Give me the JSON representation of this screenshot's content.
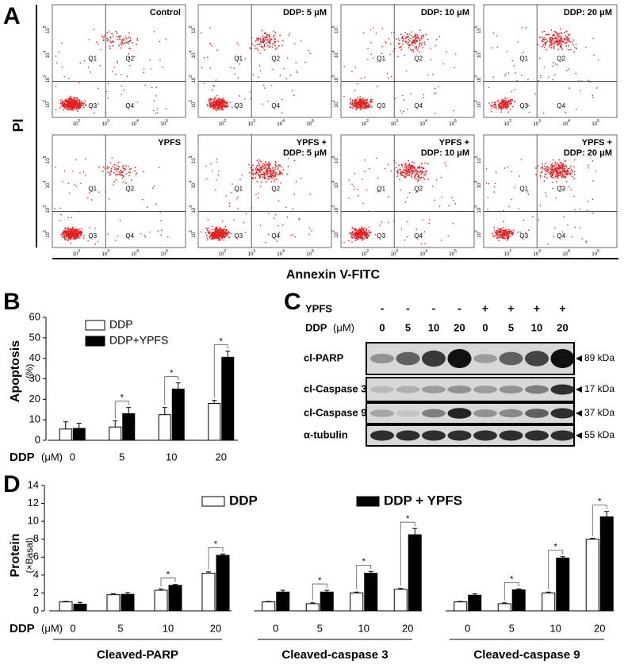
{
  "panel_labels": [
    "A",
    "B",
    "C",
    "D"
  ],
  "panel_a": {
    "y_label": "PI",
    "x_label": "Annexin V-FITC",
    "tick_base": "10",
    "tick_exponents": [
      "2",
      "3",
      "4",
      "5"
    ],
    "quadrants": [
      "Q1",
      "Q2",
      "Q3",
      "Q4"
    ],
    "plots": [
      {
        "title": [
          "Control"
        ]
      },
      {
        "title": [
          "DDP: 5 μM"
        ]
      },
      {
        "title": [
          "DDP: 10 μM"
        ]
      },
      {
        "title": [
          "DDP: 20 μM"
        ]
      },
      {
        "title": [
          "YPFS"
        ]
      },
      {
        "title": [
          "YPFS +",
          "DDP: 5 μM"
        ]
      },
      {
        "title": [
          "YPFS +",
          "DDP: 10 μM"
        ]
      },
      {
        "title": [
          "YPFS +",
          "DDP: 20 μM"
        ]
      }
    ]
  },
  "panel_c": {
    "ypfs_label": "YPFS",
    "ypfs_signs": [
      "-",
      "-",
      "-",
      "-",
      "+",
      "+",
      "+",
      "+"
    ],
    "ddp_label": "DDP",
    "ddp_unit": "(μM)",
    "ddp_doses": [
      "0",
      "5",
      "10",
      "20",
      "0",
      "5",
      "10",
      "20"
    ],
    "rows": [
      {
        "label": "cl-PARP",
        "size": "89 kDa"
      },
      {
        "label": "cl-Caspase 3",
        "size": "17 kDa"
      },
      {
        "label": "cl-Caspase 9",
        "size": "37 kDa"
      },
      {
        "label": "α-tubulin",
        "size": "55 kDa"
      }
    ]
  },
  "chart_data": [
    {
      "type": "bar",
      "y_label": "Apoptosis",
      "y_unit": "(%)",
      "x_label": "DDP",
      "x_unit": "(μM)",
      "categories": [
        "0",
        "5",
        "10",
        "20"
      ],
      "series": [
        {
          "name": "DDP",
          "color": "#ffffff",
          "values": [
            5.5,
            6.5,
            12.5,
            18
          ],
          "errors": [
            3.5,
            3,
            3.5,
            1.5
          ]
        },
        {
          "name": "DDP+YPFS",
          "color": "#000000",
          "values": [
            5.8,
            13,
            25,
            40.5
          ],
          "errors": [
            2.5,
            3,
            3,
            3
          ]
        }
      ],
      "significance": [
        null,
        "*",
        "*",
        "*"
      ],
      "ylim": [
        0,
        60
      ],
      "yticks": [
        0,
        10,
        20,
        30,
        40,
        50,
        60
      ]
    },
    {
      "type": "bar",
      "y_label": "Protein",
      "y_unit": "(×Basal)",
      "x_label": "DDP",
      "x_unit": "(μM)",
      "group_labels": [
        "Cleaved-PARP",
        "Cleaved-caspase 3",
        "Cleaved-caspase 9"
      ],
      "categories": [
        "0",
        "5",
        "10",
        "20",
        "0",
        "5",
        "10",
        "20",
        "0",
        "5",
        "10",
        "20"
      ],
      "series": [
        {
          "name": "DDP",
          "color": "#ffffff",
          "values": [
            1,
            1.8,
            2.3,
            4.2,
            1,
            0.8,
            2,
            2.4,
            1,
            0.8,
            2,
            8
          ],
          "errors": [
            0.05,
            0.1,
            0.15,
            0.15,
            0.05,
            0.1,
            0.1,
            0.1,
            0.05,
            0.1,
            0.1,
            0.1
          ]
        },
        {
          "name": "DDP + YPFS",
          "color": "#000000",
          "values": [
            0.75,
            1.85,
            2.85,
            6.2,
            2.1,
            2.1,
            4.2,
            8.5,
            1.75,
            2.35,
            5.9,
            10.5
          ],
          "errors": [
            0.2,
            0.2,
            0.1,
            0.15,
            0.2,
            0.2,
            0.2,
            0.7,
            0.15,
            0.1,
            0.15,
            0.6
          ]
        }
      ],
      "significance": [
        null,
        null,
        "*",
        "*",
        null,
        "*",
        "*",
        "*",
        null,
        "*",
        "*",
        "*"
      ],
      "ylim": [
        0,
        14
      ],
      "yticks": [
        0,
        2,
        4,
        6,
        8,
        10,
        12,
        14
      ]
    }
  ]
}
